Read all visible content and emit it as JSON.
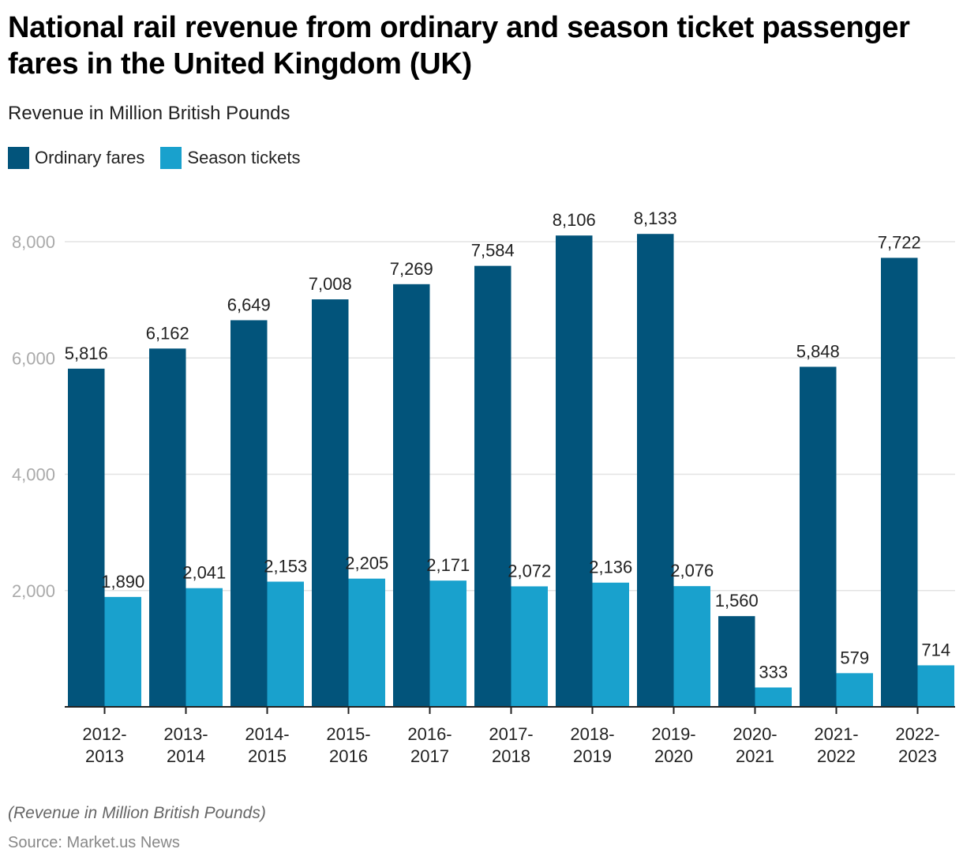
{
  "header": {
    "title": "National rail revenue from ordinary and season ticket passenger fares in the United Kingdom (UK)",
    "subtitle": "Revenue in Million British Pounds"
  },
  "legend": [
    {
      "label": "Ordinary fares",
      "color": "#02547b"
    },
    {
      "label": "Season tickets",
      "color": "#19a1cd"
    }
  ],
  "footer": {
    "note": "(Revenue in Million British Pounds)",
    "source": "Source: Market.us News"
  },
  "chart_data": {
    "type": "bar",
    "title": "National rail revenue from ordinary and season ticket passenger fares in the United Kingdom (UK)",
    "subtitle": "Revenue in Million British Pounds",
    "xlabel": "",
    "ylabel": "",
    "categories": [
      [
        "2012-",
        "2013"
      ],
      [
        "2013-",
        "2014"
      ],
      [
        "2014-",
        "2015"
      ],
      [
        "2015-",
        "2016"
      ],
      [
        "2016-",
        "2017"
      ],
      [
        "2017-",
        "2018"
      ],
      [
        "2018-",
        "2019"
      ],
      [
        "2019-",
        "2020"
      ],
      [
        "2020-",
        "2021"
      ],
      [
        "2021-",
        "2022"
      ],
      [
        "2022-",
        "2023"
      ]
    ],
    "series": [
      {
        "name": "Ordinary fares",
        "color": "#02547b",
        "values": [
          5816,
          6162,
          6649,
          7008,
          7269,
          7584,
          8106,
          8133,
          1560,
          5848,
          7722
        ],
        "labels": [
          "5,816",
          "6,162",
          "6,649",
          "7,008",
          "7,269",
          "7,584",
          "8,106",
          "8,133",
          "1,560",
          "5,848",
          "7,722"
        ]
      },
      {
        "name": "Season tickets",
        "color": "#19a1cd",
        "values": [
          1890,
          2041,
          2153,
          2205,
          2171,
          2072,
          2136,
          2076,
          333,
          579,
          714
        ],
        "labels": [
          "1,890",
          "2,041",
          "2,153",
          "2,205",
          "2,171",
          "2,072",
          "2,136",
          "2,076",
          "333",
          "579",
          "714"
        ]
      }
    ],
    "yticks": [
      2000,
      4000,
      6000,
      8000
    ],
    "ytick_labels": [
      "2,000",
      "4,000",
      "6,000",
      "8,000"
    ],
    "ylim": [
      0,
      8000
    ],
    "grid": true,
    "legend_position": "top-left",
    "gridline_color": "#e3e3e3",
    "axis_color": "#222222"
  }
}
